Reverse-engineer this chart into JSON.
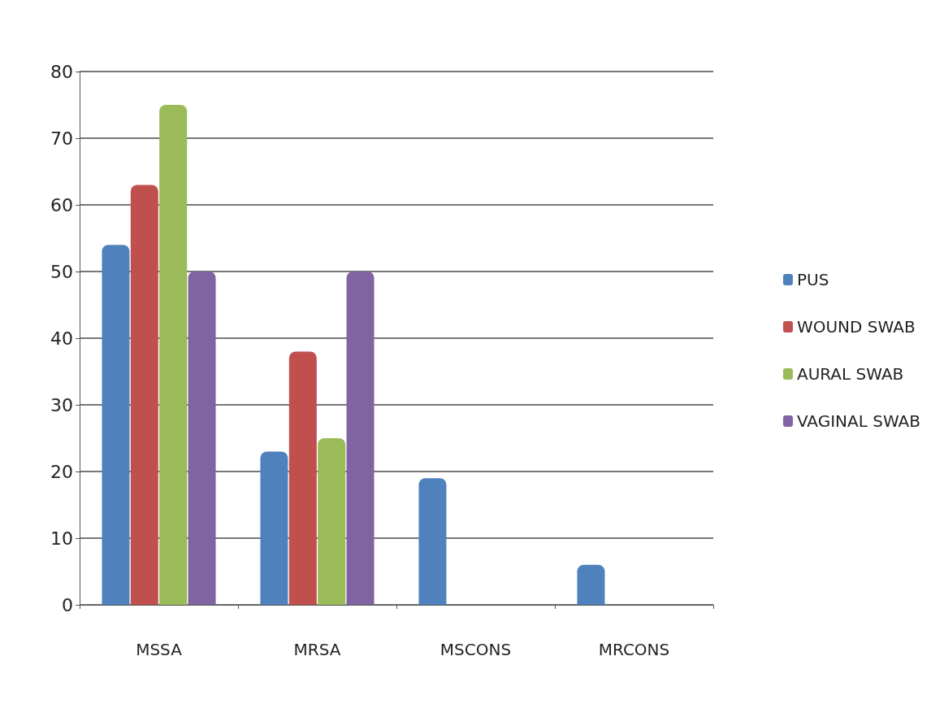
{
  "chart_data": {
    "type": "bar",
    "categories": [
      "MSSA",
      "MRSA",
      "MSCONS",
      "MRCONS"
    ],
    "series": [
      {
        "name": "PUS",
        "color": "#4f81bd",
        "values": [
          54,
          23,
          19,
          6
        ]
      },
      {
        "name": "WOUND SWAB",
        "color": "#c0504d",
        "values": [
          63,
          38,
          0,
          0
        ]
      },
      {
        "name": "AURAL SWAB",
        "color": "#9bbb59",
        "values": [
          75,
          25,
          0,
          0
        ]
      },
      {
        "name": "VAGINAL SWAB",
        "color": "#8064a2",
        "values": [
          50,
          50,
          0,
          0
        ]
      }
    ],
    "ylim": [
      0,
      80
    ],
    "yticks": [
      0,
      10,
      20,
      30,
      40,
      50,
      60,
      70,
      80
    ],
    "grid": "y",
    "legend": "right"
  }
}
